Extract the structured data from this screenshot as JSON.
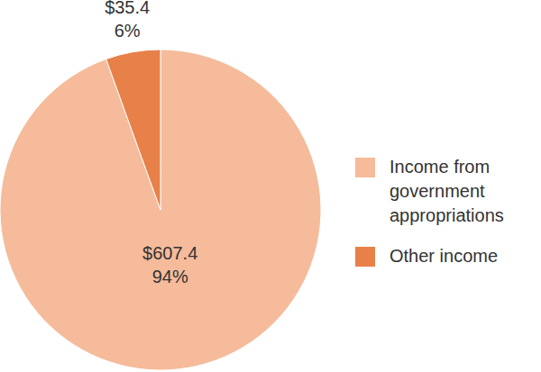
{
  "chart_data": {
    "type": "pie",
    "categories": [
      "Income from government appropriations",
      "Other income"
    ],
    "values": [
      607.4,
      35.4
    ],
    "value_labels": [
      "$607.4",
      "$35.4"
    ],
    "percent_labels": [
      "94%",
      "6%"
    ],
    "colors": [
      "#f5bb9b",
      "#e8804a"
    ],
    "legend": "right",
    "data_labels": true
  }
}
